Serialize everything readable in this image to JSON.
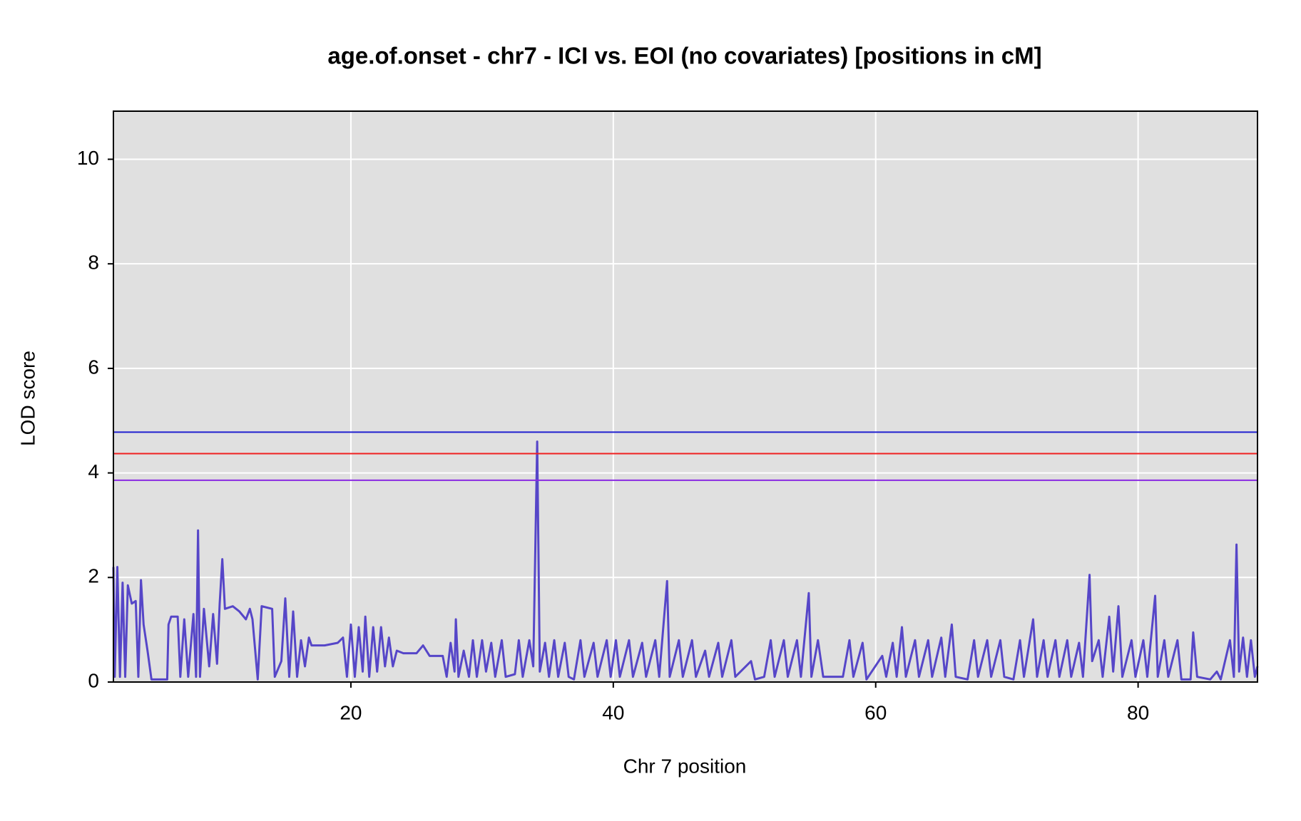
{
  "chart_data": {
    "type": "line",
    "title": "age.of.onset - chr7 - ICI vs. EOI (no covariates) [positions in cM]",
    "x_label": "Chr 7 position",
    "y_label": "LOD score",
    "color": "#5646c8",
    "x": [
      1.9,
      2.0,
      2.2,
      2.4,
      2.6,
      2.8,
      3.0,
      3.3,
      3.6,
      3.8,
      4.0,
      4.2,
      4.5,
      4.8,
      6.0,
      6.1,
      6.3,
      6.8,
      7.0,
      7.3,
      7.6,
      8.0,
      8.2,
      8.35,
      8.5,
      8.8,
      9.2,
      9.5,
      9.8,
      10.0,
      10.2,
      10.4,
      11.0,
      11.5,
      12.0,
      12.3,
      12.5,
      12.9,
      13.2,
      14.0,
      14.2,
      14.7,
      15.0,
      15.3,
      15.6,
      15.9,
      16.2,
      16.5,
      16.8,
      17.0,
      18.0,
      19.0,
      19.4,
      19.7,
      20.0,
      20.3,
      20.6,
      20.9,
      21.1,
      21.4,
      21.7,
      22.0,
      22.3,
      22.6,
      22.9,
      23.2,
      23.5,
      24.0,
      25.0,
      25.5,
      26.0,
      27.0,
      27.3,
      27.6,
      27.9,
      28.0,
      28.2,
      28.6,
      29.0,
      29.3,
      29.6,
      30.0,
      30.3,
      30.7,
      31.0,
      31.5,
      31.8,
      32.5,
      32.8,
      33.1,
      33.6,
      33.9,
      34.2,
      34.4,
      34.8,
      35.1,
      35.5,
      35.8,
      36.3,
      36.6,
      37.0,
      37.5,
      37.8,
      38.5,
      38.8,
      39.5,
      39.8,
      40.2,
      40.5,
      41.2,
      41.5,
      42.2,
      42.5,
      43.2,
      43.5,
      44.1,
      44.3,
      45.0,
      45.3,
      46.0,
      46.3,
      47.0,
      47.3,
      48.0,
      48.3,
      49.0,
      49.3,
      50.5,
      50.8,
      51.5,
      52.0,
      52.3,
      53.0,
      53.3,
      54.0,
      54.3,
      54.9,
      55.1,
      55.6,
      56.0,
      57.0,
      57.5,
      58.0,
      58.3,
      59.0,
      59.3,
      60.5,
      60.8,
      61.3,
      61.6,
      62.0,
      62.3,
      63.0,
      63.3,
      64.0,
      64.3,
      65.0,
      65.3,
      65.8,
      66.1,
      67.0,
      67.5,
      67.8,
      68.5,
      68.8,
      69.5,
      69.8,
      70.5,
      71.0,
      71.3,
      72.0,
      72.3,
      72.8,
      73.1,
      73.7,
      74.0,
      74.6,
      74.9,
      75.5,
      75.8,
      76.3,
      76.5,
      77.0,
      77.3,
      77.8,
      78.1,
      78.5,
      78.8,
      79.5,
      79.8,
      80.4,
      80.7,
      81.3,
      81.5,
      82.0,
      82.3,
      83.0,
      83.3,
      84.0,
      84.2,
      84.5,
      85.5,
      86.0,
      86.3,
      87.0,
      87.3,
      87.5,
      87.7,
      88.0,
      88.3,
      88.6,
      88.9,
      89.1
    ],
    "values": [
      2.2,
      0.1,
      2.2,
      0.1,
      1.9,
      0.1,
      1.85,
      1.5,
      1.55,
      0.1,
      1.95,
      1.1,
      0.6,
      0.05,
      0.05,
      1.1,
      1.25,
      1.25,
      0.1,
      1.2,
      0.1,
      1.3,
      0.1,
      2.9,
      0.1,
      1.4,
      0.3,
      1.3,
      0.35,
      1.5,
      2.35,
      1.4,
      1.45,
      1.35,
      1.2,
      1.4,
      1.2,
      0.05,
      1.45,
      1.4,
      0.1,
      0.4,
      1.6,
      0.1,
      1.35,
      0.1,
      0.8,
      0.3,
      0.85,
      0.7,
      0.7,
      0.75,
      0.85,
      0.1,
      1.1,
      0.1,
      1.05,
      0.2,
      1.25,
      0.1,
      1.05,
      0.2,
      1.05,
      0.3,
      0.85,
      0.3,
      0.6,
      0.55,
      0.55,
      0.7,
      0.5,
      0.5,
      0.1,
      0.75,
      0.2,
      1.2,
      0.1,
      0.6,
      0.1,
      0.8,
      0.1,
      0.8,
      0.2,
      0.75,
      0.1,
      0.8,
      0.1,
      0.15,
      0.8,
      0.1,
      0.8,
      0.3,
      4.6,
      0.2,
      0.75,
      0.1,
      0.8,
      0.1,
      0.75,
      0.1,
      0.05,
      0.8,
      0.1,
      0.75,
      0.1,
      0.8,
      0.1,
      0.8,
      0.1,
      0.8,
      0.1,
      0.75,
      0.1,
      0.8,
      0.1,
      1.93,
      0.1,
      0.8,
      0.1,
      0.8,
      0.1,
      0.6,
      0.1,
      0.75,
      0.1,
      0.8,
      0.1,
      0.4,
      0.05,
      0.1,
      0.8,
      0.1,
      0.8,
      0.1,
      0.8,
      0.1,
      1.7,
      0.1,
      0.8,
      0.1,
      0.1,
      0.1,
      0.8,
      0.1,
      0.75,
      0.05,
      0.5,
      0.1,
      0.75,
      0.1,
      1.05,
      0.1,
      0.8,
      0.1,
      0.8,
      0.1,
      0.85,
      0.1,
      1.1,
      0.1,
      0.05,
      0.8,
      0.1,
      0.8,
      0.1,
      0.8,
      0.1,
      0.05,
      0.8,
      0.1,
      1.2,
      0.1,
      0.8,
      0.1,
      0.8,
      0.1,
      0.8,
      0.1,
      0.75,
      0.1,
      2.05,
      0.4,
      0.8,
      0.1,
      1.25,
      0.2,
      1.45,
      0.1,
      0.8,
      0.1,
      0.8,
      0.1,
      1.65,
      0.1,
      0.8,
      0.1,
      0.8,
      0.05,
      0.05,
      0.95,
      0.1,
      0.05,
      0.2,
      0.05,
      0.8,
      0.1,
      2.63,
      0.2,
      0.85,
      0.1,
      0.8,
      0.1,
      0.3
    ],
    "threshold_lines": [
      {
        "value": 4.78,
        "color": "#2020d0"
      },
      {
        "value": 4.37,
        "color": "#f02020"
      },
      {
        "value": 3.86,
        "color": "#8a2be2"
      }
    ],
    "xlim": [
      1.9,
      89.1
    ],
    "ylim": [
      0,
      10.92
    ],
    "xticks": [
      20,
      40,
      60,
      80
    ],
    "yticks": [
      0,
      2,
      4,
      6,
      8,
      10
    ],
    "grid": true
  }
}
